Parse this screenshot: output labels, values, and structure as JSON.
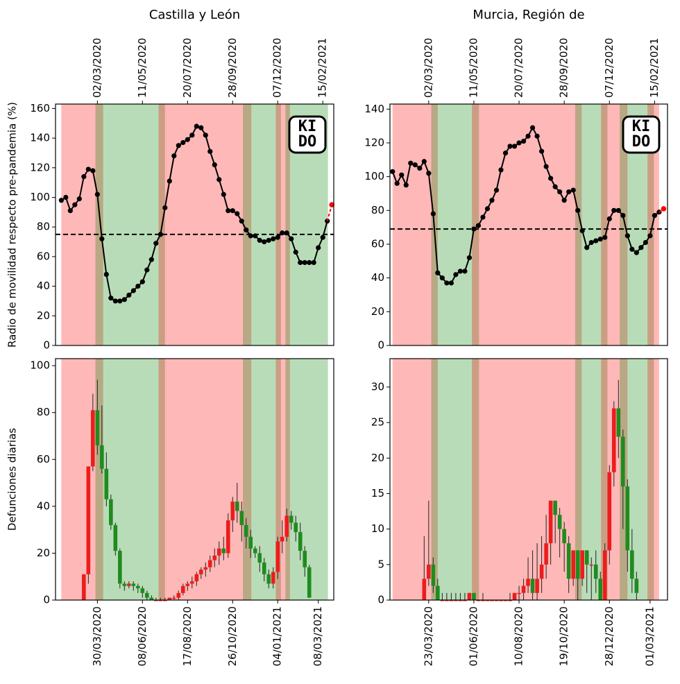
{
  "chart_data": [
    {
      "type": "line",
      "title": "Castilla y León",
      "ylabel": "Radio de movilidad respecto pre-pandemia (%)",
      "logo": [
        "KI",
        "DO"
      ],
      "x": [
        "06/01/2020",
        "13/01/2020",
        "20/01/2020",
        "27/01/2020",
        "03/02/2020",
        "10/02/2020",
        "17/02/2020",
        "24/02/2020",
        "02/03/2020",
        "09/03/2020",
        "16/03/2020",
        "23/03/2020",
        "30/03/2020",
        "06/04/2020",
        "13/04/2020",
        "20/04/2020",
        "27/04/2020",
        "04/05/2020",
        "11/05/2020",
        "18/05/2020",
        "25/05/2020",
        "01/06/2020",
        "08/06/2020",
        "15/06/2020",
        "22/06/2020",
        "29/06/2020",
        "06/07/2020",
        "13/07/2020",
        "20/07/2020",
        "27/07/2020",
        "03/08/2020",
        "10/08/2020",
        "17/08/2020",
        "24/08/2020",
        "31/08/2020",
        "07/09/2020",
        "14/09/2020",
        "21/09/2020",
        "28/09/2020",
        "05/10/2020",
        "12/10/2020",
        "19/10/2020",
        "26/10/2020",
        "02/11/2020",
        "09/11/2020",
        "16/11/2020",
        "23/11/2020",
        "30/11/2020",
        "07/12/2020",
        "14/12/2020",
        "21/12/2020",
        "28/12/2020",
        "04/01/2021",
        "11/01/2021",
        "18/01/2021",
        "25/01/2021",
        "01/02/2021",
        "08/02/2021",
        "15/02/2021",
        "22/02/2021"
      ],
      "series": [
        {
          "color": "#000000",
          "values": [
            98,
            100,
            91,
            95,
            99,
            114,
            119,
            118,
            102,
            72,
            48,
            32,
            30,
            30,
            31,
            34,
            37,
            40,
            43,
            51,
            58,
            69,
            75,
            93,
            111,
            128,
            135,
            137,
            139,
            142,
            148,
            147,
            142,
            131,
            122,
            112,
            102,
            91,
            91,
            89,
            84,
            78,
            74,
            74,
            71,
            70,
            71,
            72,
            73,
            76,
            76,
            72,
            63,
            56,
            56,
            56,
            56,
            66,
            73,
            84
          ]
        }
      ],
      "prediction": {
        "x": "01/03/2021",
        "value": 95,
        "color": "#ff0000"
      },
      "threshold": 75,
      "regions": [
        {
          "start": "06/01/2020",
          "end": "11/03/2020",
          "color": "#ff0000"
        },
        {
          "start": "28/02/2020",
          "end": "15/06/2020",
          "color": "#008000"
        },
        {
          "start": "05/06/2020",
          "end": "27/10/2020",
          "color": "#ff0000"
        },
        {
          "start": "14/10/2020",
          "end": "12/12/2020",
          "color": "#008000"
        },
        {
          "start": "04/12/2020",
          "end": "26/12/2020",
          "color": "#ff0000"
        },
        {
          "start": "19/12/2020",
          "end": "23/02/2021",
          "color": "#008000"
        }
      ],
      "xlim": [
        "28/12/2019",
        "04/03/2021"
      ],
      "xticks": [
        "02/03/2020",
        "11/05/2020",
        "20/07/2020",
        "28/09/2020",
        "07/12/2020",
        "15/02/2021"
      ],
      "ylim": [
        0,
        163
      ],
      "yticks": [
        0,
        20,
        40,
        60,
        80,
        100,
        120,
        140,
        160
      ]
    },
    {
      "type": "candlestick",
      "ylabel": "Defunciones diarias",
      "x": [
        "09/03/2020",
        "16/03/2020",
        "23/03/2020",
        "30/03/2020",
        "06/04/2020",
        "13/04/2020",
        "20/04/2020",
        "27/04/2020",
        "04/05/2020",
        "11/05/2020",
        "18/05/2020",
        "25/05/2020",
        "01/06/2020",
        "08/06/2020",
        "15/06/2020",
        "22/06/2020",
        "29/06/2020",
        "06/07/2020",
        "13/07/2020",
        "20/07/2020",
        "27/07/2020",
        "03/08/2020",
        "10/08/2020",
        "17/08/2020",
        "24/08/2020",
        "31/08/2020",
        "07/09/2020",
        "14/09/2020",
        "21/09/2020",
        "28/09/2020",
        "05/10/2020",
        "12/10/2020",
        "19/10/2020",
        "26/10/2020",
        "02/11/2020",
        "09/11/2020",
        "16/11/2020",
        "23/11/2020",
        "30/11/2020",
        "07/12/2020",
        "14/12/2020",
        "21/12/2020",
        "28/12/2020",
        "04/01/2021",
        "11/01/2021",
        "18/01/2021",
        "25/01/2021",
        "01/02/2021",
        "08/02/2021",
        "15/02/2021",
        "22/02/2021"
      ],
      "open": [
        0,
        11,
        57,
        81,
        66,
        56,
        43,
        32,
        21,
        7,
        6,
        7,
        6,
        5,
        3,
        1,
        0,
        0,
        0,
        0,
        1,
        1,
        3,
        6,
        7,
        8,
        11,
        13,
        14,
        17,
        19,
        22,
        20,
        34,
        42,
        38,
        32,
        27,
        22,
        20,
        16,
        11,
        7,
        12,
        25,
        27,
        36,
        33,
        29,
        21,
        14
      ],
      "close": [
        11,
        57,
        81,
        66,
        56,
        43,
        32,
        21,
        7,
        6,
        7,
        6,
        5,
        3,
        1,
        0,
        0,
        0,
        0,
        1,
        1,
        3,
        6,
        7,
        8,
        11,
        13,
        14,
        17,
        19,
        22,
        20,
        34,
        42,
        38,
        32,
        27,
        22,
        20,
        16,
        11,
        7,
        12,
        25,
        27,
        36,
        33,
        29,
        21,
        14,
        1
      ],
      "high": [
        11,
        57,
        88,
        94,
        83,
        63,
        45,
        33,
        22,
        8,
        8,
        8,
        7,
        6,
        4,
        2,
        1,
        1,
        1,
        1,
        2,
        4,
        7,
        8,
        10,
        12,
        14,
        16,
        19,
        22,
        25,
        27,
        37,
        44,
        50,
        42,
        35,
        30,
        23,
        23,
        18,
        13,
        14,
        27,
        34,
        39,
        38,
        36,
        33,
        23,
        15
      ],
      "low": [
        0,
        7,
        55,
        62,
        54,
        40,
        30,
        19,
        5,
        4,
        5,
        4,
        3,
        1,
        0,
        0,
        0,
        0,
        0,
        0,
        0,
        0,
        2,
        4,
        5,
        6,
        9,
        10,
        12,
        14,
        15,
        17,
        18,
        29,
        33,
        25,
        22,
        18,
        18,
        12,
        8,
        5,
        5,
        9,
        20,
        25,
        30,
        25,
        17,
        10,
        1
      ],
      "up_color": "#ee1c1c",
      "down_color": "#1e8c1e",
      "regions": [
        {
          "start": "03/02/2020",
          "end": "08/04/2020",
          "color": "#ff0000"
        },
        {
          "start": "27/03/2020",
          "end": "13/07/2020",
          "color": "#008000"
        },
        {
          "start": "03/07/2020",
          "end": "24/11/2020",
          "color": "#ff0000"
        },
        {
          "start": "11/11/2020",
          "end": "09/01/2021",
          "color": "#008000"
        },
        {
          "start": "01/01/2021",
          "end": "23/01/2021",
          "color": "#ff0000"
        },
        {
          "start": "16/01/2021",
          "end": "23/03/2021",
          "color": "#008000"
        }
      ],
      "xlim": [
        "25/01/2020",
        "01/04/2021"
      ],
      "xticks": [
        "30/03/2020",
        "08/06/2020",
        "17/08/2020",
        "26/10/2020",
        "04/01/2021",
        "08/03/2021"
      ],
      "ylim": [
        0,
        103
      ],
      "yticks": [
        0,
        20,
        40,
        60,
        80,
        100
      ]
    },
    {
      "type": "line",
      "title": "Murcia, Región de",
      "logo": [
        "KI",
        "DO"
      ],
      "x": [
        "06/01/2020",
        "13/01/2020",
        "20/01/2020",
        "27/01/2020",
        "03/02/2020",
        "10/02/2020",
        "17/02/2020",
        "24/02/2020",
        "02/03/2020",
        "09/03/2020",
        "16/03/2020",
        "23/03/2020",
        "30/03/2020",
        "06/04/2020",
        "13/04/2020",
        "20/04/2020",
        "27/04/2020",
        "04/05/2020",
        "11/05/2020",
        "18/05/2020",
        "25/05/2020",
        "01/06/2020",
        "08/06/2020",
        "15/06/2020",
        "22/06/2020",
        "29/06/2020",
        "06/07/2020",
        "13/07/2020",
        "20/07/2020",
        "27/07/2020",
        "03/08/2020",
        "10/08/2020",
        "17/08/2020",
        "24/08/2020",
        "31/08/2020",
        "07/09/2020",
        "14/09/2020",
        "21/09/2020",
        "28/09/2020",
        "05/10/2020",
        "12/10/2020",
        "19/10/2020",
        "26/10/2020",
        "02/11/2020",
        "09/11/2020",
        "16/11/2020",
        "23/11/2020",
        "30/11/2020",
        "07/12/2020",
        "14/12/2020",
        "21/12/2020",
        "28/12/2020",
        "04/01/2021",
        "11/01/2021",
        "18/01/2021",
        "25/01/2021",
        "01/02/2021",
        "08/02/2021",
        "15/02/2021",
        "22/02/2021"
      ],
      "series": [
        {
          "color": "#000000",
          "values": [
            103,
            96,
            101,
            95,
            108,
            107,
            105,
            109,
            102,
            78,
            43,
            40,
            37,
            37,
            42,
            44,
            44,
            52,
            69,
            71,
            76,
            81,
            86,
            92,
            104,
            114,
            118,
            118,
            120,
            121,
            124,
            129,
            124,
            115,
            106,
            99,
            94,
            91,
            86,
            91,
            92,
            80,
            68,
            58,
            61,
            62,
            63,
            64,
            75,
            80,
            80,
            77,
            65,
            57,
            55,
            58,
            61,
            65,
            77,
            79
          ]
        }
      ],
      "prediction": {
        "x": "01/03/2021",
        "value": 81,
        "color": "#ff0000"
      },
      "threshold": 69,
      "regions": [
        {
          "start": "06/01/2020",
          "end": "16/03/2020",
          "color": "#ff0000"
        },
        {
          "start": "06/03/2020",
          "end": "19/05/2020",
          "color": "#008000"
        },
        {
          "start": "08/05/2020",
          "end": "25/10/2020",
          "color": "#ff0000"
        },
        {
          "start": "15/10/2020",
          "end": "04/12/2020",
          "color": "#008000"
        },
        {
          "start": "24/11/2020",
          "end": "04/01/2021",
          "color": "#ff0000"
        },
        {
          "start": "23/12/2020",
          "end": "14/02/2021",
          "color": "#008000"
        },
        {
          "start": "04/02/2021",
          "end": "22/02/2021",
          "color": "#ff0000"
        }
      ],
      "xlim": [
        "02/01/2020",
        "07/03/2021"
      ],
      "xticks": [
        "02/03/2020",
        "11/05/2020",
        "20/07/2020",
        "28/09/2020",
        "07/12/2020",
        "15/02/2021"
      ],
      "ylim": [
        0,
        143
      ],
      "yticks": [
        0,
        20,
        40,
        60,
        80,
        100,
        120,
        140
      ]
    },
    {
      "type": "candlestick",
      "x": [
        "16/03/2020",
        "23/03/2020",
        "30/03/2020",
        "06/04/2020",
        "13/04/2020",
        "20/04/2020",
        "27/04/2020",
        "04/05/2020",
        "11/05/2020",
        "18/05/2020",
        "25/05/2020",
        "01/06/2020",
        "08/06/2020",
        "15/06/2020",
        "22/06/2020",
        "29/06/2020",
        "06/07/2020",
        "13/07/2020",
        "20/07/2020",
        "27/07/2020",
        "03/08/2020",
        "10/08/2020",
        "17/08/2020",
        "24/08/2020",
        "31/08/2020",
        "07/09/2020",
        "14/09/2020",
        "21/09/2020",
        "28/09/2020",
        "05/10/2020",
        "12/10/2020",
        "19/10/2020",
        "26/10/2020",
        "02/11/2020",
        "09/11/2020",
        "16/11/2020",
        "23/11/2020",
        "30/11/2020",
        "07/12/2020",
        "14/12/2020",
        "21/12/2020",
        "28/12/2020",
        "04/01/2021",
        "11/01/2021",
        "18/01/2021",
        "25/01/2021",
        "01/02/2021",
        "08/02/2021"
      ],
      "open": [
        0,
        3,
        5,
        2,
        0,
        0,
        0,
        0,
        0,
        0,
        0,
        1,
        0,
        0,
        0,
        0,
        0,
        0,
        0,
        0,
        0,
        1,
        1,
        2,
        3,
        1,
        3,
        5,
        8,
        14,
        12,
        10,
        8,
        3,
        7,
        3,
        7,
        5,
        5,
        3,
        0,
        7,
        18,
        27,
        23,
        16,
        7,
        3
      ],
      "close": [
        3,
        5,
        2,
        0,
        0,
        0,
        0,
        0,
        0,
        0,
        1,
        0,
        0,
        0,
        0,
        0,
        0,
        0,
        0,
        0,
        1,
        1,
        2,
        3,
        1,
        3,
        5,
        8,
        14,
        12,
        10,
        8,
        3,
        7,
        3,
        7,
        5,
        5,
        3,
        0,
        7,
        18,
        27,
        23,
        16,
        7,
        3,
        1
      ],
      "high": [
        9,
        14,
        6,
        3,
        1,
        1,
        1,
        1,
        1,
        1,
        1,
        1,
        0,
        1,
        0,
        0,
        0,
        0,
        0,
        1,
        1,
        2,
        3,
        6,
        7,
        8,
        9,
        12,
        14,
        14,
        13,
        11,
        9,
        7,
        7,
        7,
        7,
        6,
        7,
        4,
        8,
        19,
        28,
        31,
        24,
        17,
        10,
        4
      ],
      "low": [
        0,
        2,
        1,
        0,
        0,
        0,
        0,
        0,
        0,
        0,
        0,
        0,
        0,
        0,
        0,
        0,
        0,
        0,
        0,
        0,
        0,
        0,
        0,
        1,
        0,
        0,
        1,
        3,
        5,
        8,
        6,
        4,
        1,
        2,
        0,
        2,
        1,
        0,
        1,
        0,
        0,
        5,
        16,
        20,
        10,
        4,
        1,
        0
      ],
      "up_color": "#ee1c1c",
      "down_color": "#1e8c1e",
      "regions": [
        {
          "start": "27/01/2020",
          "end": "06/04/2020",
          "color": "#ff0000"
        },
        {
          "start": "27/03/2020",
          "end": "09/06/2020",
          "color": "#008000"
        },
        {
          "start": "29/05/2020",
          "end": "15/11/2020",
          "color": "#ff0000"
        },
        {
          "start": "05/11/2020",
          "end": "25/12/2020",
          "color": "#008000"
        },
        {
          "start": "15/12/2020",
          "end": "25/01/2021",
          "color": "#ff0000"
        },
        {
          "start": "13/01/2021",
          "end": "07/03/2021",
          "color": "#008000"
        },
        {
          "start": "25/02/2021",
          "end": "15/03/2021",
          "color": "#ff0000"
        }
      ],
      "xlim": [
        "23/01/2020",
        "28/03/2021"
      ],
      "xticks": [
        "23/03/2020",
        "01/06/2020",
        "10/08/2020",
        "19/10/2020",
        "28/12/2020",
        "01/03/2021"
      ],
      "ylim": [
        0,
        34
      ],
      "yticks": [
        0,
        5,
        10,
        15,
        20,
        25,
        30
      ]
    }
  ]
}
